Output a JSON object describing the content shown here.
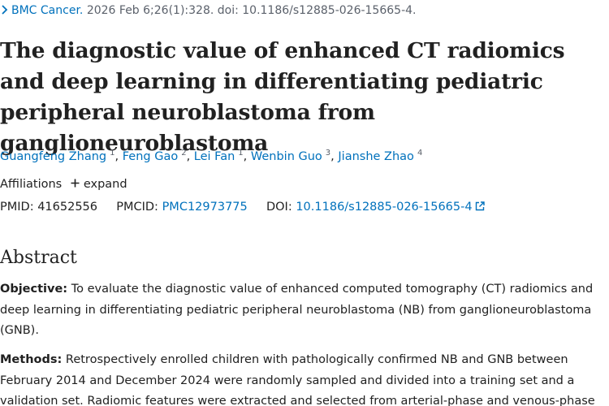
{
  "citation": {
    "journal": "BMC Cancer.",
    "details": "2026 Feb 6;26(1):328. doi: 10.1186/s12885-026-15665-4."
  },
  "title": "The diagnostic value of enhanced CT radiomics and deep learning in differentiating pediatric peripheral neuroblastoma from ganglioneuroblastoma",
  "authors": [
    {
      "name": "Guangfeng Zhang",
      "sup": "1"
    },
    {
      "name": "Feng Gao",
      "sup": "2"
    },
    {
      "name": "Lei Fan",
      "sup": "1"
    },
    {
      "name": "Wenbin Guo",
      "sup": "3"
    },
    {
      "name": "Jianshe Zhao",
      "sup": "4"
    }
  ],
  "separator": ",",
  "affiliations": {
    "label": "Affiliations",
    "expand_label": "expand"
  },
  "ids": {
    "pmid_label": "PMID:",
    "pmid": "41652556",
    "pmcid_label": "PMCID:",
    "pmcid": "PMC12973775",
    "doi_label": "DOI:",
    "doi": "10.1186/s12885-026-15665-4"
  },
  "abstract": {
    "heading": "Abstract",
    "objective_label": "Objective:",
    "objective_text": "To evaluate the diagnostic value of enhanced computed tomography (CT) radiomics and deep learning in differentiating pediatric peripheral neuroblastoma (NB) from ganglioneuroblastoma (GNB).",
    "methods_label": "Methods:",
    "methods_text": "Retrospectively enrolled children with pathologically confirmed NB and GNB between February 2014 and December 2024 were randomly sampled and divided into a training set and a validation set. Radiomic features were extracted and selected from arterial-phase and venous-phase"
  },
  "colors": {
    "link": "#0071bc",
    "text": "#212121",
    "muted": "#5b616b"
  }
}
